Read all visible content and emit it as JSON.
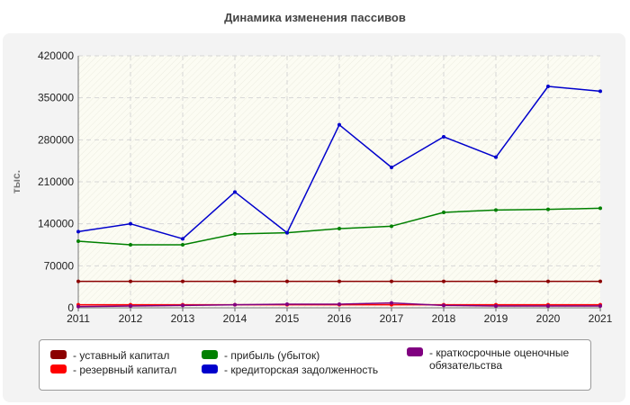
{
  "title": "Динамика изменения пассивов",
  "chart_data": {
    "type": "line",
    "title": "Динамика изменения пассивов",
    "xlabel": "",
    "ylabel": "тыс.",
    "categories": [
      "2011",
      "2012",
      "2013",
      "2014",
      "2015",
      "2016",
      "2017",
      "2018",
      "2019",
      "2020",
      "2021"
    ],
    "ylim": [
      0,
      420000
    ],
    "yticks": [
      "0",
      "70000",
      "140000",
      "210000",
      "280000",
      "350000",
      "420000"
    ],
    "grid": true,
    "legend_position": "bottom",
    "series": [
      {
        "name": "уставный капитал",
        "color": "#8b0000",
        "values": [
          44000,
          44000,
          44000,
          44000,
          44000,
          44000,
          44000,
          44000,
          44000,
          44000,
          44000
        ]
      },
      {
        "name": "резервный капитал",
        "color": "#ff0000",
        "values": [
          5000,
          5000,
          5000,
          5000,
          5000,
          5000,
          5000,
          5000,
          5000,
          5000,
          5000
        ]
      },
      {
        "name": "прибыль (убыток)",
        "color": "#008000",
        "values": [
          111000,
          105000,
          105000,
          123000,
          125000,
          132000,
          136000,
          159000,
          163000,
          164000,
          166000
        ]
      },
      {
        "name": "кредиторская задолженность",
        "color": "#0000cc",
        "values": [
          127000,
          140000,
          115000,
          193000,
          125000,
          305000,
          234000,
          285000,
          251000,
          369000,
          361000
        ]
      },
      {
        "name": "краткосрочные оценочные обязательства",
        "color": "#800080",
        "values": [
          2000,
          3000,
          4000,
          5000,
          6000,
          6000,
          8000,
          4000,
          3000,
          3000,
          3000
        ]
      }
    ]
  }
}
